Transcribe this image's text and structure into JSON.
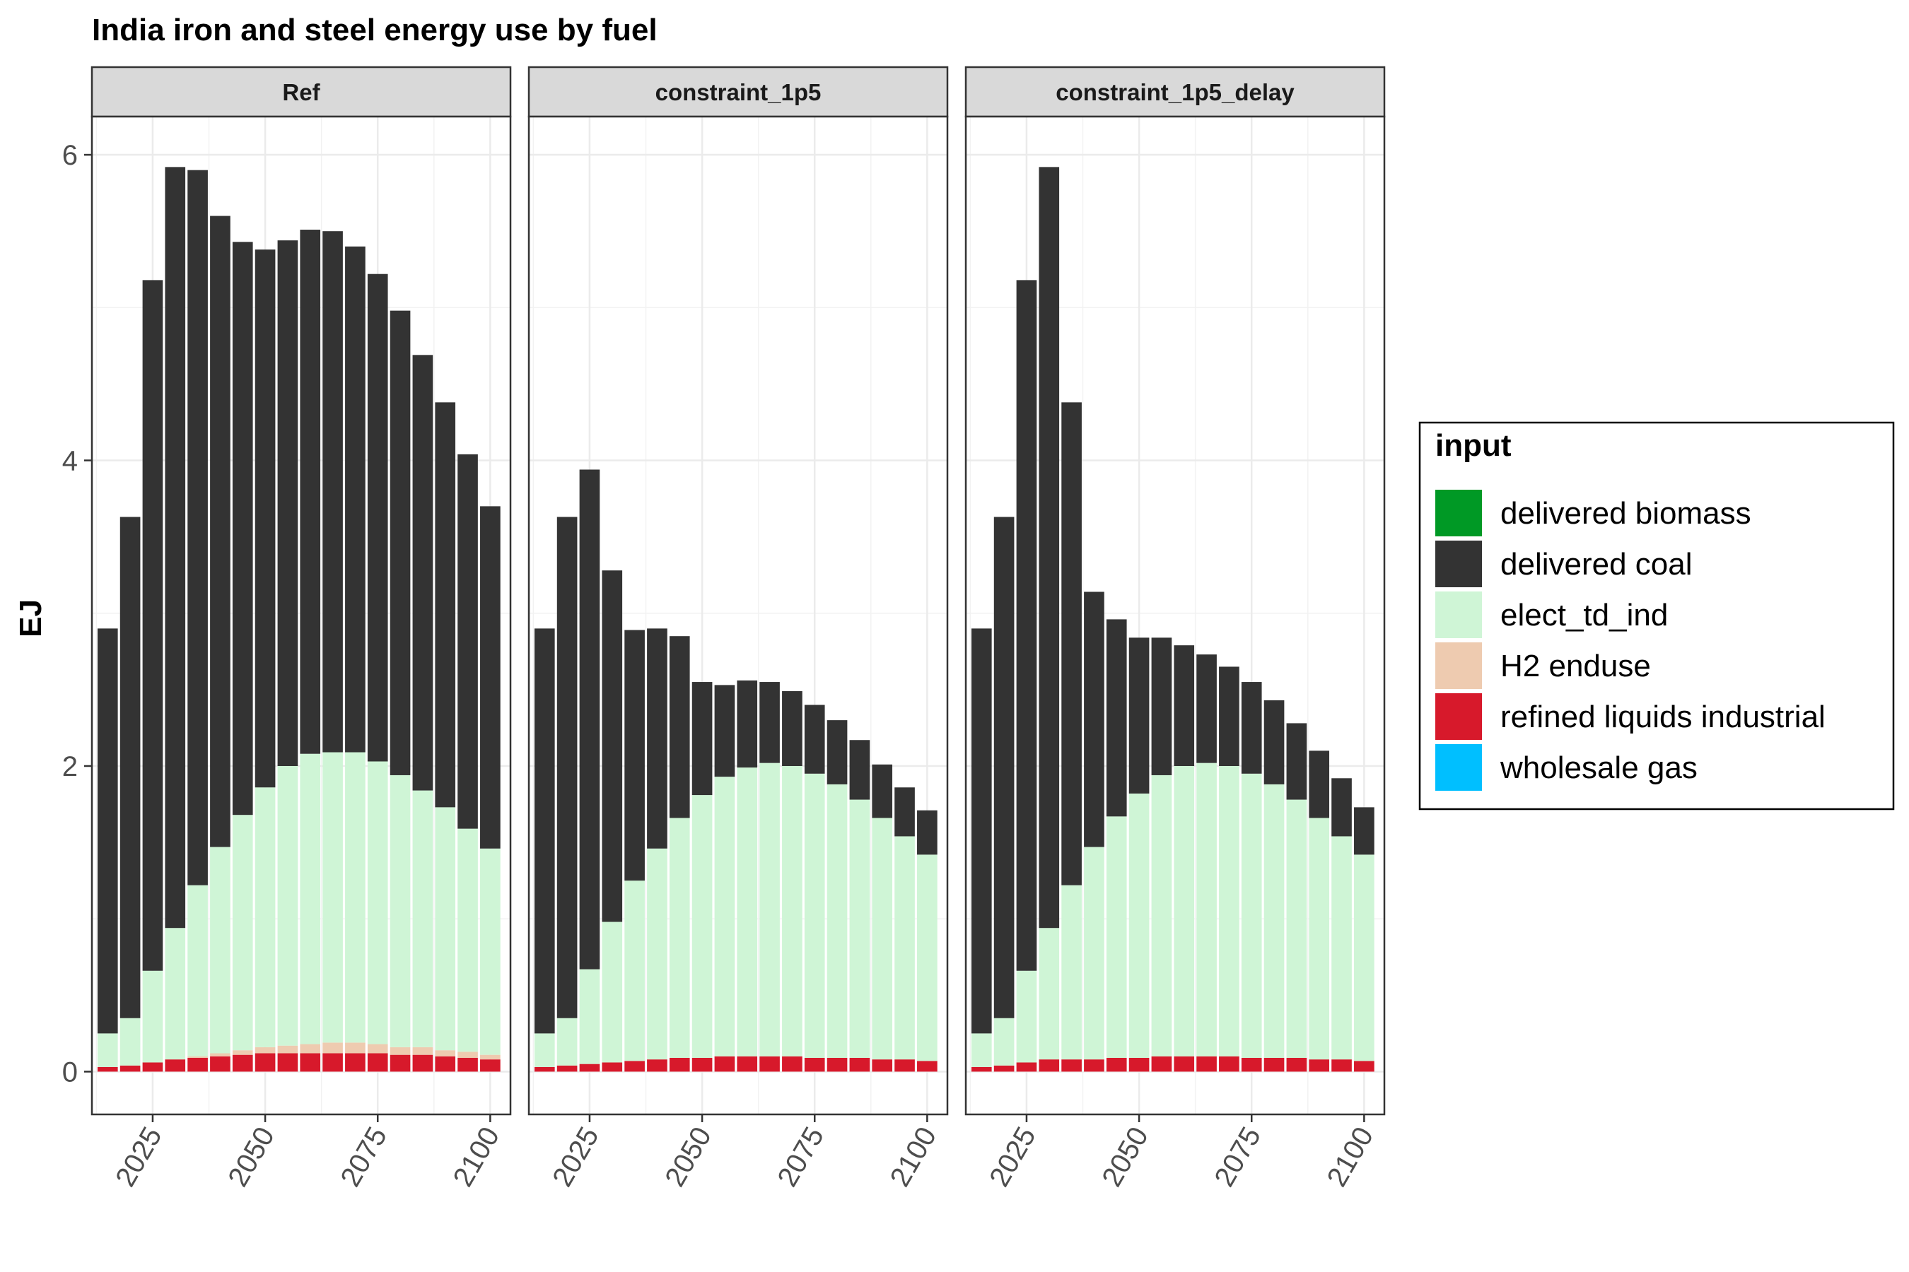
{
  "chart_data": {
    "type": "bar",
    "stacked": true,
    "title": "India iron and steel energy use by fuel",
    "ylabel": "EJ",
    "xlabel": "",
    "ylim": [
      -0.28,
      6.25
    ],
    "xlim": [
      2011.5,
      2104.5
    ],
    "y_ticks": [
      0,
      2,
      4,
      6
    ],
    "x_ticks": [
      2025,
      2050,
      2075,
      2100
    ],
    "grid": true,
    "legend": {
      "title": "input",
      "placement": "right",
      "items": [
        {
          "name": "delivered biomass",
          "color": "#009925"
        },
        {
          "name": "delivered coal",
          "color": "#333333"
        },
        {
          "name": "elect_td_ind",
          "color": "#cff5d6"
        },
        {
          "name": "H2 enduse",
          "color": "#eecbb0"
        },
        {
          "name": "refined liquids industrial",
          "color": "#d7192b"
        },
        {
          "name": "wholesale gas",
          "color": "#00bfff"
        }
      ]
    },
    "x": [
      2015,
      2020,
      2025,
      2030,
      2035,
      2040,
      2045,
      2050,
      2055,
      2060,
      2065,
      2070,
      2075,
      2080,
      2085,
      2090,
      2095,
      2100
    ],
    "panels": [
      {
        "name": "Ref",
        "series": [
          {
            "name": "refined liquids industrial",
            "values": [
              0.03,
              0.04,
              0.06,
              0.08,
              0.09,
              0.1,
              0.11,
              0.12,
              0.12,
              0.12,
              0.12,
              0.12,
              0.12,
              0.11,
              0.11,
              0.1,
              0.09,
              0.08
            ]
          },
          {
            "name": "H2 enduse",
            "values": [
              0,
              0,
              0,
              0,
              0.01,
              0.02,
              0.03,
              0.04,
              0.05,
              0.06,
              0.07,
              0.07,
              0.06,
              0.05,
              0.05,
              0.04,
              0.04,
              0.03
            ]
          },
          {
            "name": "elect_td_ind",
            "values": [
              0.22,
              0.31,
              0.6,
              0.86,
              1.12,
              1.35,
              1.54,
              1.7,
              1.83,
              1.9,
              1.9,
              1.9,
              1.85,
              1.78,
              1.68,
              1.59,
              1.46,
              1.35
            ]
          },
          {
            "name": "delivered coal",
            "values": [
              2.65,
              3.28,
              4.52,
              4.98,
              4.68,
              4.13,
              3.75,
              3.52,
              3.44,
              3.43,
              3.41,
              3.31,
              3.19,
              3.04,
              2.85,
              2.65,
              2.45,
              2.24
            ]
          }
        ]
      },
      {
        "name": "constraint_1p5",
        "series": [
          {
            "name": "refined liquids industrial",
            "values": [
              0.03,
              0.04,
              0.05,
              0.06,
              0.07,
              0.08,
              0.09,
              0.09,
              0.1,
              0.1,
              0.1,
              0.1,
              0.09,
              0.09,
              0.09,
              0.08,
              0.08,
              0.07
            ]
          },
          {
            "name": "elect_td_ind",
            "values": [
              0.22,
              0.31,
              0.62,
              0.92,
              1.18,
              1.38,
              1.57,
              1.72,
              1.83,
              1.89,
              1.92,
              1.9,
              1.86,
              1.79,
              1.69,
              1.58,
              1.46,
              1.35
            ]
          },
          {
            "name": "delivered coal",
            "values": [
              2.65,
              3.28,
              3.27,
              2.3,
              1.64,
              1.44,
              1.19,
              0.74,
              0.6,
              0.57,
              0.53,
              0.49,
              0.45,
              0.42,
              0.39,
              0.35,
              0.32,
              0.29
            ]
          }
        ]
      },
      {
        "name": "constraint_1p5_delay",
        "series": [
          {
            "name": "refined liquids industrial",
            "values": [
              0.03,
              0.04,
              0.06,
              0.08,
              0.08,
              0.08,
              0.09,
              0.09,
              0.1,
              0.1,
              0.1,
              0.1,
              0.09,
              0.09,
              0.09,
              0.08,
              0.08,
              0.07
            ]
          },
          {
            "name": "elect_td_ind",
            "values": [
              0.22,
              0.31,
              0.6,
              0.86,
              1.14,
              1.39,
              1.58,
              1.73,
              1.84,
              1.9,
              1.92,
              1.9,
              1.86,
              1.79,
              1.69,
              1.58,
              1.46,
              1.35
            ]
          },
          {
            "name": "delivered coal",
            "values": [
              2.65,
              3.28,
              4.52,
              4.98,
              3.16,
              1.67,
              1.29,
              1.02,
              0.9,
              0.79,
              0.71,
              0.65,
              0.6,
              0.55,
              0.5,
              0.44,
              0.38,
              0.31
            ]
          }
        ]
      }
    ]
  }
}
